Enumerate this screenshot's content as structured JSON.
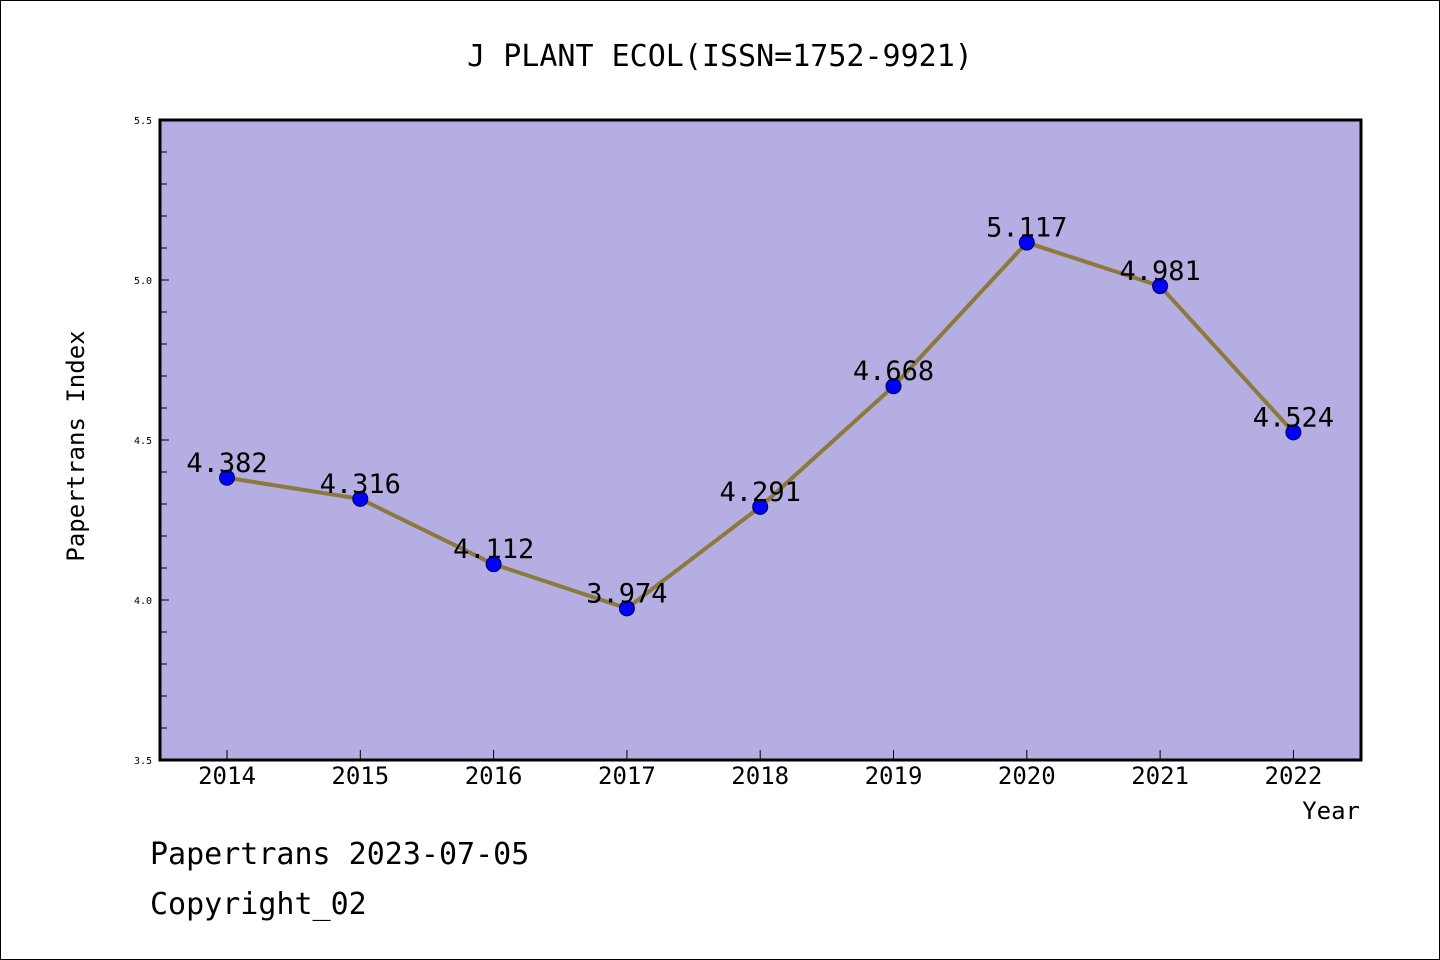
{
  "chart_data": {
    "type": "line",
    "title": "J PLANT ECOL(ISSN=1752-9921)",
    "xlabel": "Year",
    "ylabel": "Papertrans Index",
    "categories": [
      "2014",
      "2015",
      "2016",
      "2017",
      "2018",
      "2019",
      "2020",
      "2021",
      "2022"
    ],
    "series": [
      {
        "values": [
          4.382,
          4.316,
          4.112,
          3.974,
          4.291,
          4.668,
          5.117,
          4.981,
          4.524
        ],
        "labels": [
          "4.382",
          "4.316",
          "4.112",
          "3.974",
          "4.291",
          "4.668",
          "5.117",
          "4.981",
          "4.524"
        ]
      }
    ],
    "ylim": [
      3.5,
      5.5
    ],
    "yticks": [
      "3.5",
      "4.0",
      "4.5",
      "5.0",
      "5.5"
    ],
    "grid": false,
    "colors": {
      "plot_background": "#b4aee2",
      "line": "#8c7a3c",
      "marker": "#0000ff"
    }
  },
  "footer": {
    "line1": "Papertrans 2023-07-05",
    "line2": "Copyright_02"
  }
}
